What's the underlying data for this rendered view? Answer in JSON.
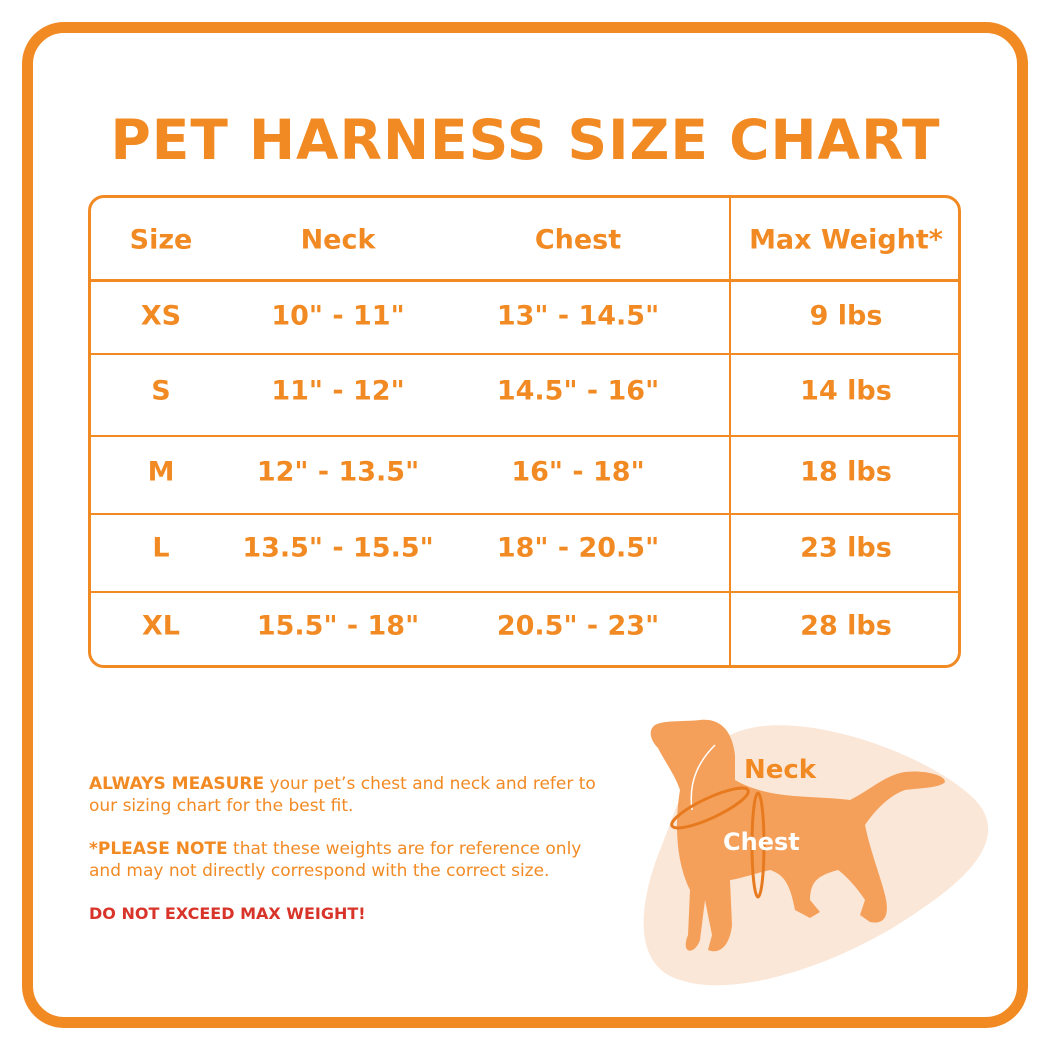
{
  "title": "PET HARNESS SIZE CHART",
  "table": {
    "headers": [
      "Size",
      "Neck",
      "Chest",
      "Max Weight*"
    ],
    "rows": [
      [
        "XS",
        "10\" - 11\"",
        "13\" - 14.5\"",
        "9 lbs"
      ],
      [
        "S",
        "11\" - 12\"",
        "14.5\" - 16\"",
        "14 lbs"
      ],
      [
        "M",
        "12\" - 13.5\"",
        "16\" - 18\"",
        "18 lbs"
      ],
      [
        "L",
        "13.5\" - 15.5\"",
        "18\" - 20.5\"",
        "23 lbs"
      ],
      [
        "XL",
        "15.5\" - 18\"",
        "20.5\" - 23\"",
        "28 lbs"
      ]
    ]
  },
  "notes": {
    "measure_bold": "ALWAYS MEASURE",
    "measure_text": " your pet’s chest and neck and refer to our sizing chart for the best fit.",
    "note_bold": "*PLEASE NOTE",
    "note_text": " that these weights are for reference only and may not directly correspond with the correct size.",
    "warning": "DO NOT EXCEED MAX WEIGHT!"
  },
  "illustration": {
    "neck_label": "Neck",
    "chest_label": "Chest"
  },
  "colors": {
    "accent": "#f28a24",
    "warning": "#d8342a",
    "dog": "#f5a05a",
    "blob": "#fbe7d8"
  }
}
